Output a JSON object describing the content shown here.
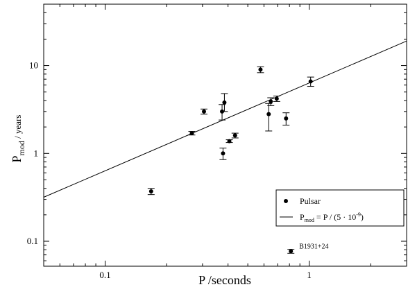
{
  "chart_data": {
    "type": "scatter",
    "xlabel": "P /seconds",
    "ylabel": {
      "main": "P",
      "sub": "mod",
      "rest": " / years"
    },
    "x_scale": "log",
    "y_scale": "log",
    "xlim": [
      0.05,
      3.0
    ],
    "ylim": [
      0.052,
      50
    ],
    "x_ticks": [
      {
        "value": 0.1,
        "label": "0.1"
      },
      {
        "value": 1,
        "label": "1"
      }
    ],
    "y_ticks": [
      {
        "value": 0.1,
        "label": "0.1"
      },
      {
        "value": 1,
        "label": "1"
      },
      {
        "value": 10,
        "label": "10"
      }
    ],
    "grid": false,
    "legend_position": "right",
    "legend": [
      {
        "kind": "marker",
        "label": "Pulsar"
      },
      {
        "kind": "line",
        "label_main": "P",
        "label_sub": "mod",
        "label_mid": " = P / (5 · 10",
        "label_sup": "-9",
        "label_end": ")"
      }
    ],
    "model_line": {
      "slope_years_per_second": 6.34
    },
    "series": [
      {
        "name": "Pulsar",
        "points": [
          {
            "x": 0.168,
            "y": 0.37,
            "ylo": 0.34,
            "yhi": 0.4
          },
          {
            "x": 0.266,
            "y": 1.7,
            "ylo": 1.62,
            "yhi": 1.78
          },
          {
            "x": 0.305,
            "y": 3.0,
            "ylo": 2.8,
            "yhi": 3.2
          },
          {
            "x": 0.374,
            "y": 3.0,
            "ylo": 2.4,
            "yhi": 3.6
          },
          {
            "x": 0.378,
            "y": 1.0,
            "ylo": 0.85,
            "yhi": 1.15
          },
          {
            "x": 0.384,
            "y": 3.8,
            "ylo": 3.0,
            "yhi": 4.8
          },
          {
            "x": 0.406,
            "y": 1.38,
            "ylo": 1.33,
            "yhi": 1.43
          },
          {
            "x": 0.433,
            "y": 1.6,
            "ylo": 1.5,
            "yhi": 1.7
          },
          {
            "x": 0.577,
            "y": 9.0,
            "ylo": 8.3,
            "yhi": 9.7
          },
          {
            "x": 0.633,
            "y": 2.8,
            "ylo": 1.8,
            "yhi": 3.7
          },
          {
            "x": 0.648,
            "y": 3.9,
            "ylo": 3.5,
            "yhi": 4.3
          },
          {
            "x": 0.693,
            "y": 4.2,
            "ylo": 3.9,
            "yhi": 4.5
          },
          {
            "x": 0.77,
            "y": 2.5,
            "ylo": 2.1,
            "yhi": 2.9
          },
          {
            "x": 1.016,
            "y": 6.6,
            "ylo": 5.8,
            "yhi": 7.4
          },
          {
            "x": 0.813,
            "y": 0.077,
            "ylo": 0.073,
            "yhi": 0.081
          }
        ]
      }
    ],
    "annotations": [
      {
        "text": "B1931+24",
        "x": 0.813,
        "y": 0.077
      }
    ]
  }
}
